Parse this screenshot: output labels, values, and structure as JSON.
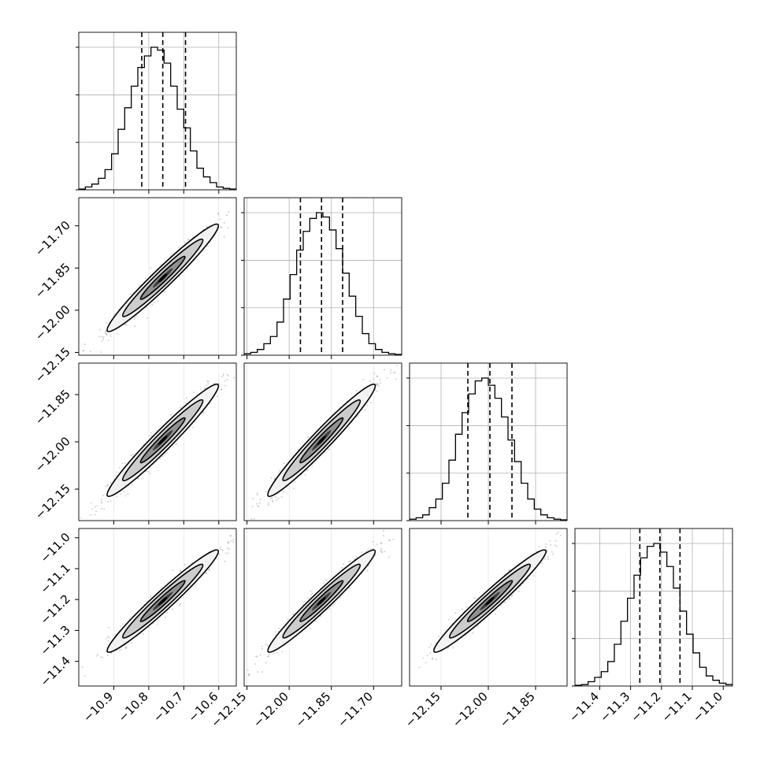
{
  "chart_data": {
    "type": "corner",
    "grid": true,
    "parameters": [
      {
        "range": [
          -11.0,
          -10.55
        ],
        "tick_labels": [
          "−10.9",
          "−10.8",
          "−10.7",
          "−10.6"
        ],
        "tick_values": [
          -10.9,
          -10.8,
          -10.7,
          -10.6
        ],
        "quantiles": [
          -10.82,
          -10.76,
          -10.695
        ],
        "hist": [
          0.005,
          0.02,
          0.04,
          0.08,
          0.14,
          0.25,
          0.42,
          0.57,
          0.72,
          0.85,
          0.93,
          0.99,
          0.97,
          0.88,
          0.72,
          0.56,
          0.43,
          0.27,
          0.15,
          0.09,
          0.05,
          0.02,
          0.01,
          0.005
        ]
      },
      {
        "range": [
          -12.16,
          -11.6
        ],
        "tick_labels": [
          "−12.15",
          "−12.00",
          "−11.85",
          "−11.70"
        ],
        "tick_values": [
          -12.15,
          -12.0,
          -11.85,
          -11.7
        ],
        "quantiles": [
          -11.96,
          -11.885,
          -11.81
        ],
        "hist": [
          0.01,
          0.02,
          0.04,
          0.08,
          0.13,
          0.23,
          0.39,
          0.56,
          0.73,
          0.86,
          0.95,
          0.99,
          0.96,
          0.87,
          0.74,
          0.57,
          0.41,
          0.27,
          0.15,
          0.08,
          0.04,
          0.02,
          0.01,
          0.005
        ]
      },
      {
        "range": [
          -12.25,
          -11.75
        ],
        "tick_labels": [
          "−12.15",
          "−12.00",
          "−11.85"
        ],
        "tick_values": [
          -12.15,
          -12.0,
          -11.85
        ],
        "quantiles": [
          -12.065,
          -11.995,
          -11.925
        ],
        "hist": [
          0.01,
          0.02,
          0.04,
          0.09,
          0.15,
          0.26,
          0.42,
          0.6,
          0.75,
          0.88,
          0.97,
          0.99,
          0.94,
          0.85,
          0.72,
          0.56,
          0.41,
          0.26,
          0.15,
          0.08,
          0.04,
          0.02,
          0.01,
          0.005
        ]
      },
      {
        "range": [
          -11.48,
          -10.97
        ],
        "tick_labels": [
          "−11.4",
          "−11.3",
          "−11.2",
          "−11.1",
          "−11.0"
        ],
        "tick_values": [
          -11.4,
          -11.3,
          -11.2,
          -11.1,
          -11.0
        ],
        "quantiles": [
          -11.27,
          -11.205,
          -11.14
        ],
        "hist": [
          0.005,
          0.01,
          0.03,
          0.06,
          0.1,
          0.17,
          0.29,
          0.45,
          0.61,
          0.77,
          0.89,
          0.97,
          0.99,
          0.93,
          0.83,
          0.68,
          0.52,
          0.36,
          0.23,
          0.13,
          0.07,
          0.04,
          0.02,
          0.01
        ]
      }
    ],
    "correlation": 0.97
  }
}
